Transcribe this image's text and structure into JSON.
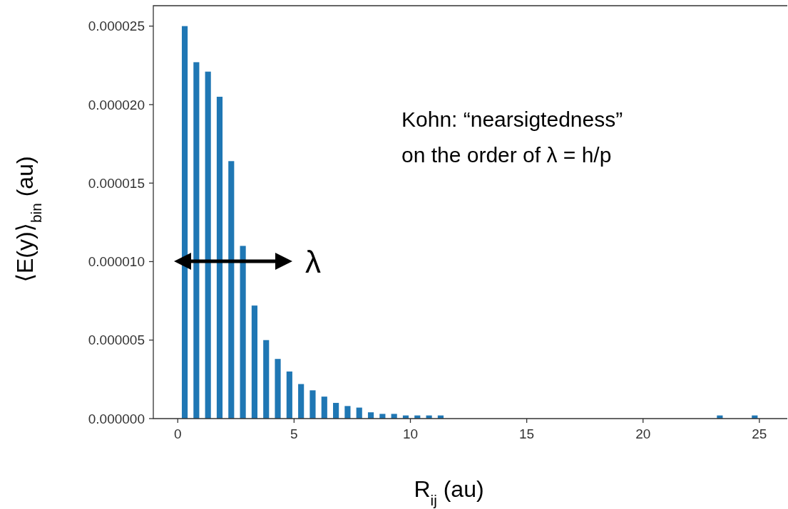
{
  "chart_data": {
    "type": "bar",
    "xlabel": "R$_{ij}$ (au)",
    "ylabel": "⟨E(y)⟩$_{bin}$ (au)",
    "x": [
      0.3,
      0.8,
      1.3,
      1.8,
      2.3,
      2.8,
      3.3,
      3.8,
      4.3,
      4.8,
      5.3,
      5.8,
      6.3,
      6.8,
      7.3,
      7.8,
      8.3,
      8.8,
      9.3,
      9.8,
      10.3,
      10.8,
      11.3,
      23.3,
      24.8
    ],
    "series": [
      {
        "color": "#1f77b4",
        "values": [
          2.5e-05,
          2.27e-05,
          2.21e-05,
          2.05e-05,
          1.64e-05,
          1.1e-05,
          7.2e-06,
          5e-06,
          3.8e-06,
          3e-06,
          2.2e-06,
          1.8e-06,
          1.4e-06,
          1e-06,
          8e-07,
          7e-07,
          4e-07,
          3e-07,
          3e-07,
          2e-07,
          2e-07,
          2e-07,
          2e-07,
          2e-07,
          2e-07
        ]
      }
    ],
    "xlim": [
      -1.05,
      26.2
    ],
    "xticks": [
      0,
      5,
      10,
      15,
      20,
      25
    ],
    "ylim": [
      0,
      2.63e-05
    ],
    "yticks": [
      {
        "value": 0,
        "label": "0.000000"
      },
      {
        "value": 5e-06,
        "label": "0.000005"
      },
      {
        "value": 1e-05,
        "label": "0.000010"
      },
      {
        "value": 1.5e-05,
        "label": "0.000015"
      },
      {
        "value": 2e-05,
        "label": "0.000020"
      },
      {
        "value": 2.5e-05,
        "label": "0.000025"
      }
    ],
    "annotations": [
      "Kohn: “nearsigtedness”",
      "on the order of λ = h/p",
      "λ"
    ],
    "grid": false
  }
}
